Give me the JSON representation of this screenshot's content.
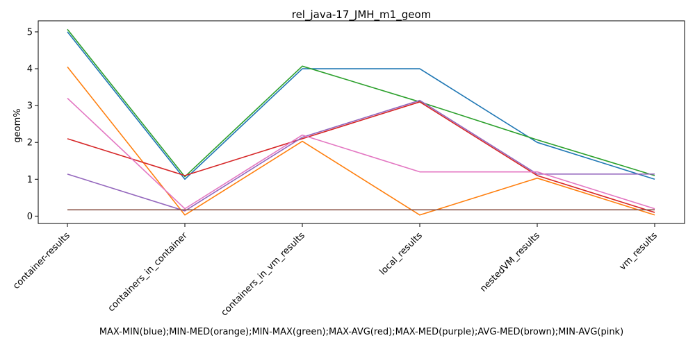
{
  "chart_data": {
    "type": "line",
    "title": "rel_java-17_JMH_m1_geom",
    "xlabel": "MAX-MIN(blue);MIN-MED(orange);MIN-MAX(green);MAX-AVG(red);MAX-MED(purple);AVG-MED(brown);MIN-AVG(pink)",
    "ylabel": "geom%",
    "categories": [
      "container-results",
      "containers_in_container",
      "containers_in_vm_results",
      "local_results",
      "nestedVM_results",
      "vm_results"
    ],
    "ylim": [
      -0.2,
      5.3
    ],
    "yticks": [
      0,
      1,
      2,
      3,
      4,
      5
    ],
    "grid": false,
    "series": [
      {
        "color": "#1f77b4",
        "values": [
          5.0,
          1.0,
          4.0,
          4.0,
          2.0,
          1.0
        ]
      },
      {
        "color": "#ff7f0e",
        "values": [
          4.05,
          0.03,
          2.03,
          0.03,
          1.03,
          0.03
        ]
      },
      {
        "color": "#2ca02c",
        "values": [
          5.07,
          1.07,
          4.07,
          3.1,
          2.07,
          1.1
        ]
      },
      {
        "color": "#d62728",
        "values": [
          2.1,
          1.1,
          2.1,
          3.1,
          1.1,
          0.1
        ]
      },
      {
        "color": "#9467bd",
        "values": [
          1.14,
          0.14,
          2.14,
          3.14,
          1.14,
          1.14
        ]
      },
      {
        "color": "#8c564b",
        "values": [
          0.17,
          0.17,
          0.17,
          0.17,
          0.17,
          0.17
        ]
      },
      {
        "color": "#e377c2",
        "values": [
          3.2,
          0.2,
          2.2,
          1.2,
          1.2,
          0.2
        ]
      }
    ]
  }
}
